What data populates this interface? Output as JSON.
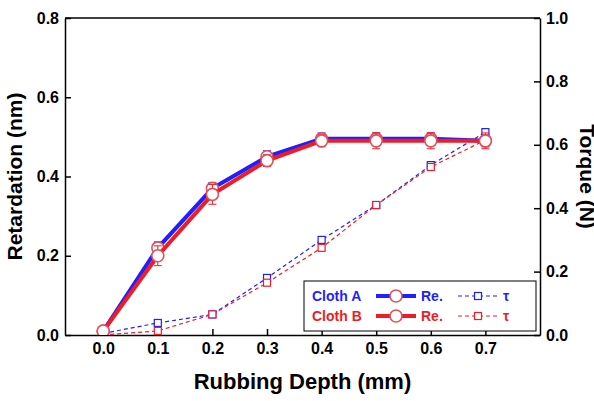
{
  "chart_data": {
    "type": "line",
    "x_label": "Rubbing Depth (mm)",
    "y_label": "Retardation (nm)",
    "y2_label": "Torque (N)",
    "x": [
      0.0,
      0.1,
      0.2,
      0.3,
      0.4,
      0.5,
      0.6,
      0.7
    ],
    "xlim": [
      -0.07,
      0.8
    ],
    "xticks": [
      {
        "value": 0,
        "label": "0.0"
      },
      {
        "value": 0.1,
        "label": "0.1"
      },
      {
        "value": 0.2,
        "label": "0.2"
      },
      {
        "value": 0.3,
        "label": "0.3"
      },
      {
        "value": 0.4,
        "label": "0.4"
      },
      {
        "value": 0.5,
        "label": "0.5"
      },
      {
        "value": 0.6,
        "label": "0.6"
      },
      {
        "value": 0.7,
        "label": "0.7"
      }
    ],
    "ylim": [
      0,
      0.8
    ],
    "yticks": [
      {
        "value": 0,
        "label": "0.0"
      },
      {
        "value": 0.2,
        "label": "0.2"
      },
      {
        "value": 0.4,
        "label": "0.4"
      },
      {
        "value": 0.6,
        "label": "0.6"
      },
      {
        "value": 0.8,
        "label": "0.8"
      }
    ],
    "y2lim": [
      0,
      1.0
    ],
    "y2ticks": [
      {
        "value": 0,
        "label": "0.0"
      },
      {
        "value": 0.2,
        "label": "0.2"
      },
      {
        "value": 0.4,
        "label": "0.4"
      },
      {
        "value": 0.6,
        "label": "0.6"
      },
      {
        "value": 0.8,
        "label": "0.8"
      },
      {
        "value": 1.0,
        "label": "1.0"
      }
    ],
    "grid": false,
    "legend": "lower right",
    "series": [
      {
        "group": "Cloth A",
        "name": "Re.",
        "color": "#1f1fff",
        "marker": "circle",
        "line_style": "solid",
        "values": [
          0.01,
          0.22,
          0.37,
          0.45,
          0.495,
          0.495,
          0.495,
          0.49
        ],
        "errors": [
          0.01,
          0.015,
          0.015,
          0.015,
          0.015,
          0.015,
          0.015,
          0.015
        ]
      },
      {
        "group": "Cloth A",
        "name": "τ",
        "color": "#1f1fff",
        "marker": "square",
        "line_style": "dashed",
        "axis": "y2",
        "values": [
          0.005,
          0.038,
          0.065,
          0.18,
          0.3,
          0.41,
          0.536,
          0.64
        ]
      },
      {
        "group": "Cloth B",
        "name": "Re.",
        "color": "#ee1c25",
        "marker": "circle",
        "line_style": "solid",
        "values": [
          0.01,
          0.2,
          0.355,
          0.44,
          0.49,
          0.49,
          0.49,
          0.49
        ],
        "errors": [
          0.01,
          0.025,
          0.025,
          0.015,
          0.015,
          0.02,
          0.02,
          0.02
        ]
      },
      {
        "group": "Cloth B",
        "name": "τ",
        "color": "#ee1c25",
        "marker": "square",
        "line_style": "dashed",
        "axis": "y2",
        "values": [
          0.0,
          0.013,
          0.065,
          0.165,
          0.275,
          0.41,
          0.53,
          0.615
        ]
      }
    ]
  }
}
